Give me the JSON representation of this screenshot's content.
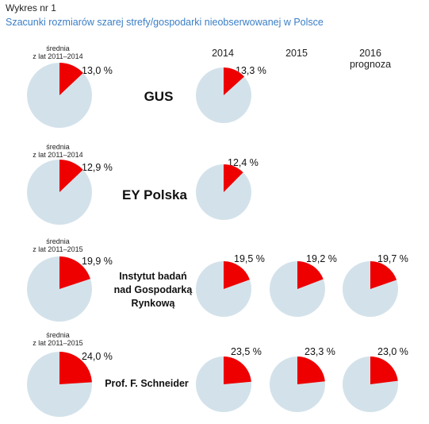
{
  "figure_label": "Wykres nr 1",
  "title": "Szacunki rozmiarów szarej strefy/gospodarki nieobserwowanej w Polsce",
  "colors": {
    "slice": "#ee0000",
    "rest": "#d3e2ea",
    "title": "#3a7ec6"
  },
  "chart_data": {
    "type": "pie",
    "title": "Szacunki rozmiarów szarej strefy/gospodarki nieobserwowanej w Polsce",
    "columns": [
      {
        "id": "avg",
        "label": ""
      },
      {
        "id": "y2014",
        "label": "2014"
      },
      {
        "id": "y2015",
        "label": "2015"
      },
      {
        "id": "y2016",
        "label": "2016",
        "sublabel": "prognoza"
      }
    ],
    "rows": [
      {
        "source": "GUS",
        "average_label": [
          "średnia",
          "z lat 2011–2014"
        ],
        "values": [
          {
            "column": "avg",
            "value": 13.0,
            "label": "13,0 %"
          },
          {
            "column": "y2014",
            "value": 13.3,
            "label": "13,3 %"
          }
        ]
      },
      {
        "source": "EY Polska",
        "average_label": [
          "średnia",
          "z lat 2011–2014"
        ],
        "values": [
          {
            "column": "avg",
            "value": 12.9,
            "label": "12,9  %"
          },
          {
            "column": "y2014",
            "value": 12.4,
            "label": "12,4 %"
          }
        ]
      },
      {
        "source": "Instytut badań nad Gospodarką Rynkową",
        "source_lines": [
          "Instytut badań",
          "nad Gospodarką",
          "Rynkową"
        ],
        "average_label": [
          "średnia",
          "z lat 2011–2015"
        ],
        "values": [
          {
            "column": "avg",
            "value": 19.9,
            "label": "19,9  %"
          },
          {
            "column": "y2014",
            "value": 19.5,
            "label": "19,5 %"
          },
          {
            "column": "y2015",
            "value": 19.2,
            "label": "19,2 %"
          },
          {
            "column": "y2016",
            "value": 19.7,
            "label": "19,7 %"
          }
        ]
      },
      {
        "source": "Prof. F. Schneider",
        "average_label": [
          "średnia",
          "z lat 2011–2015"
        ],
        "values": [
          {
            "column": "avg",
            "value": 24.0,
            "label": "24,0  %"
          },
          {
            "column": "y2014",
            "value": 23.5,
            "label": "23,5 %"
          },
          {
            "column": "y2015",
            "value": 23.3,
            "label": "23,3 %"
          },
          {
            "column": "y2016",
            "value": 23.0,
            "label": "23,0 %"
          }
        ]
      }
    ]
  }
}
